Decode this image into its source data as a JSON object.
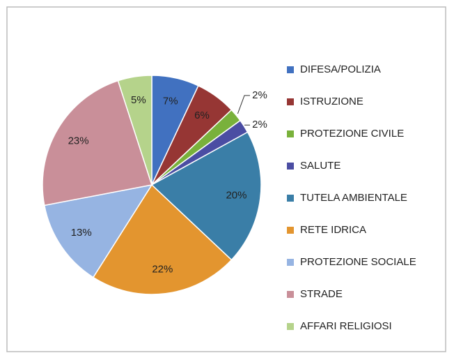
{
  "chart_data": {
    "type": "pie",
    "categories": [
      "DIFESA/POLIZIA",
      "ISTRUZIONE",
      "PROTEZIONE CIVILE",
      "SALUTE",
      "TUTELA AMBIENTALE",
      "RETE IDRICA",
      "PROTEZIONE SOCIALE",
      "STRADE",
      "AFFARI RELIGIOSI"
    ],
    "values": [
      7,
      6,
      2,
      2,
      20,
      22,
      13,
      23,
      5
    ],
    "value_labels": [
      "7%",
      "6%",
      "2%",
      "2%",
      "20%",
      "22%",
      "13%",
      "23%",
      "5%"
    ],
    "colors": [
      "#4171c0",
      "#963634",
      "#79b13b",
      "#4b4da3",
      "#3a7ea7",
      "#e3952f",
      "#96b4e2",
      "#c98f99",
      "#b5d38b"
    ],
    "legend": "right"
  }
}
